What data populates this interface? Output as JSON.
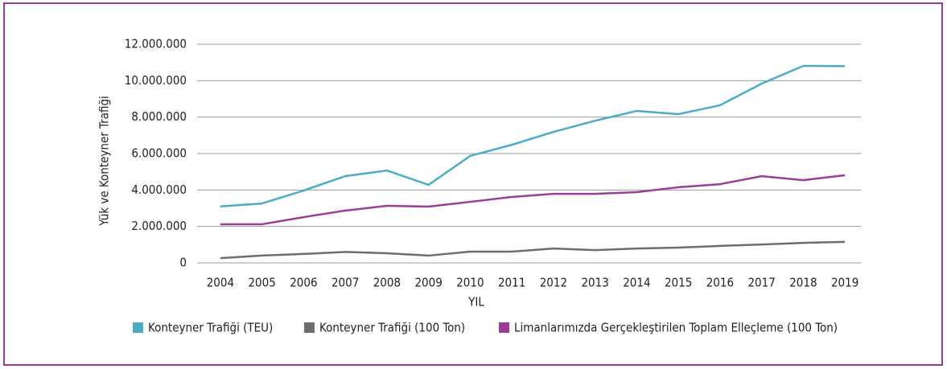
{
  "chart_data": {
    "type": "line",
    "categories": [
      "2004",
      "2005",
      "2006",
      "2007",
      "2008",
      "2009",
      "2010",
      "2011",
      "2012",
      "2013",
      "2014",
      "2015",
      "2016",
      "2017",
      "2018",
      "2019"
    ],
    "series": [
      {
        "name": "Konteyner Trafiği (TEU)",
        "color": "#4bacc6",
        "values": [
          3100000,
          3260000,
          3970000,
          4760000,
          5070000,
          4280000,
          5870000,
          6480000,
          7190000,
          7800000,
          8340000,
          8160000,
          8650000,
          9840000,
          10810000,
          10800000
        ]
      },
      {
        "name": "Konteyner Trafiği (100 Ton)",
        "color": "#6d6e70",
        "values": [
          260000,
          400000,
          490000,
          600000,
          530000,
          400000,
          620000,
          620000,
          790000,
          700000,
          790000,
          840000,
          930000,
          1010000,
          1100000,
          1150000
        ]
      },
      {
        "name": "Limanlarımızda Gerçekleştirilen Toplam Elleçleme (100 Ton)",
        "color": "#9b3d96",
        "values": [
          2120000,
          2120000,
          2510000,
          2870000,
          3130000,
          3090000,
          3350000,
          3620000,
          3790000,
          3790000,
          3880000,
          4150000,
          4320000,
          4760000,
          4540000,
          4810000
        ]
      }
    ],
    "xlabel": "YIL",
    "ylabel": "Yük ve Konteyner Trafiği",
    "ylim": [
      0,
      12000000
    ],
    "yticks": [
      0,
      {
        "value": 2000000,
        "label": "2.000.000"
      },
      {
        "value": 4000000,
        "label": "4.000.000"
      },
      {
        "value": 6000000,
        "label": "6.000.000"
      },
      {
        "value": 8000000,
        "label": "8.000.000"
      },
      {
        "value": 10000000,
        "label": "10.000.000"
      },
      {
        "value": 12000000,
        "label": "12.000.000"
      }
    ],
    "grid": true,
    "legend": "bottom"
  }
}
